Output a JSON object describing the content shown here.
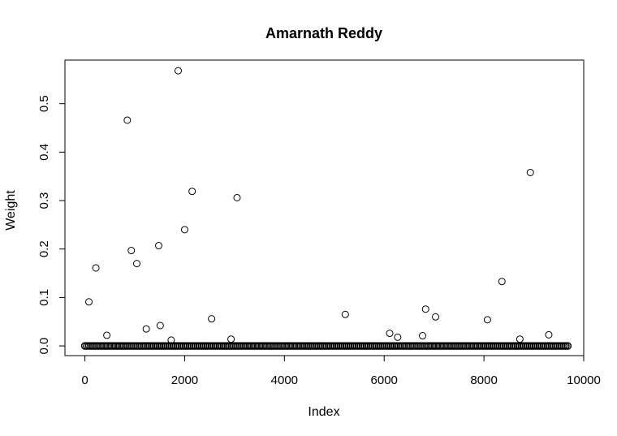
{
  "chart_data": {
    "type": "scatter",
    "title": "Amarnath Reddy",
    "xlabel": "Index",
    "ylabel": "Weight",
    "xlim": [
      -400,
      10000
    ],
    "ylim": [
      -0.02,
      0.59
    ],
    "x_ticks": [
      0,
      2000,
      4000,
      6000,
      8000,
      10000
    ],
    "x_tick_labels": [
      "0",
      "2000",
      "4000",
      "6000",
      "8000",
      "10000"
    ],
    "y_ticks": [
      0.0,
      0.1,
      0.2,
      0.3,
      0.4,
      0.5
    ],
    "y_tick_labels": [
      "0.0",
      "0.1",
      "0.2",
      "0.3",
      "0.4",
      "0.5"
    ],
    "grid": false,
    "legend": "none",
    "marker": "open-circle",
    "baseline": {
      "description": "dense run of near-zero points at every index",
      "x_start": 0,
      "x_end": 9680,
      "y": 0.0
    },
    "points": [
      {
        "x": 80,
        "y": 0.091
      },
      {
        "x": 220,
        "y": 0.161
      },
      {
        "x": 440,
        "y": 0.022
      },
      {
        "x": 850,
        "y": 0.466
      },
      {
        "x": 930,
        "y": 0.197
      },
      {
        "x": 1040,
        "y": 0.17
      },
      {
        "x": 1230,
        "y": 0.035
      },
      {
        "x": 1480,
        "y": 0.207
      },
      {
        "x": 1510,
        "y": 0.042
      },
      {
        "x": 1730,
        "y": 0.012
      },
      {
        "x": 1870,
        "y": 0.568
      },
      {
        "x": 2000,
        "y": 0.24
      },
      {
        "x": 2150,
        "y": 0.319
      },
      {
        "x": 2540,
        "y": 0.056
      },
      {
        "x": 2930,
        "y": 0.014
      },
      {
        "x": 3050,
        "y": 0.306
      },
      {
        "x": 5220,
        "y": 0.065
      },
      {
        "x": 6110,
        "y": 0.026
      },
      {
        "x": 6270,
        "y": 0.018
      },
      {
        "x": 6770,
        "y": 0.021
      },
      {
        "x": 6830,
        "y": 0.076
      },
      {
        "x": 7030,
        "y": 0.06
      },
      {
        "x": 8070,
        "y": 0.054
      },
      {
        "x": 8360,
        "y": 0.133
      },
      {
        "x": 8720,
        "y": 0.014
      },
      {
        "x": 8930,
        "y": 0.358
      },
      {
        "x": 9300,
        "y": 0.023
      }
    ]
  }
}
